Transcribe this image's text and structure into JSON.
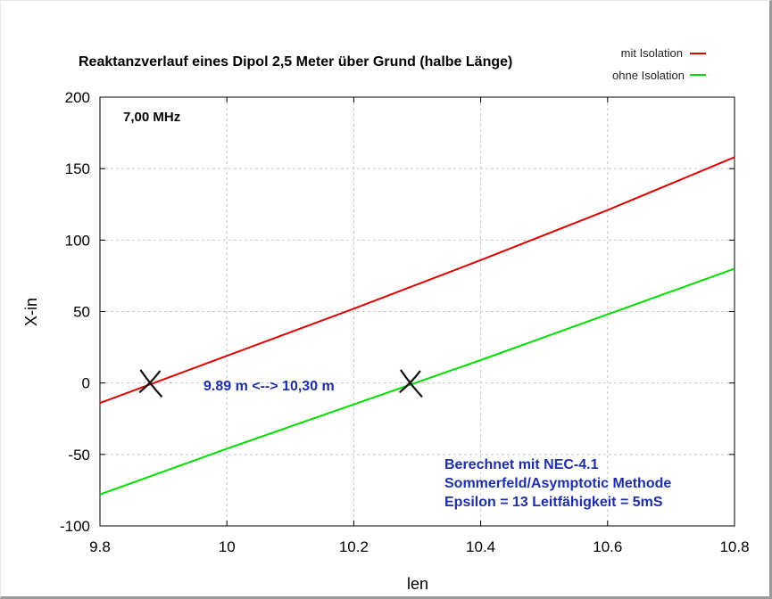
{
  "chart_data": {
    "type": "line",
    "title": "Reaktanzverlauf eines Dipol 2,5 Meter über Grund (halbe Länge)",
    "xlabel": "len",
    "ylabel": "X-in",
    "xlim": [
      9.8,
      10.8
    ],
    "ylim": [
      -100,
      200
    ],
    "xticks": [
      9.8,
      10,
      10.2,
      10.4,
      10.6,
      10.8
    ],
    "xtick_labels": [
      "9.8",
      "10",
      "10.2",
      "10.4",
      "10.6",
      "10.8"
    ],
    "yticks": [
      -100,
      -50,
      0,
      50,
      100,
      150,
      200
    ],
    "ytick_labels": [
      "-100",
      "-50",
      "0",
      "50",
      "100",
      "150",
      "200"
    ],
    "grid": true,
    "legend_position": "top-right",
    "series": [
      {
        "name": "mit Isolation",
        "color": "#dd0000",
        "x": [
          9.8,
          10.0,
          10.2,
          10.4,
          10.6,
          10.8
        ],
        "y": [
          -14,
          19,
          52,
          86,
          121,
          158
        ]
      },
      {
        "name": "ohne Isolation",
        "color": "#00dd00",
        "x": [
          9.8,
          10.0,
          10.2,
          10.4,
          10.6,
          10.8
        ],
        "y": [
          -78,
          -46,
          -15,
          16,
          48,
          80
        ]
      }
    ],
    "markers": [
      {
        "x": 9.88,
        "y": 0
      },
      {
        "x": 10.29,
        "y": 0
      }
    ],
    "annotations": {
      "frequency": "7,00 MHz",
      "range": "9.89 m <--> 10,30 m",
      "notes": [
        "Berechnet mit NEC-4.1",
        "Sommerfeld/Asymptotic Methode",
        "Epsilon = 13   Leitfähigkeit = 5mS"
      ]
    }
  }
}
